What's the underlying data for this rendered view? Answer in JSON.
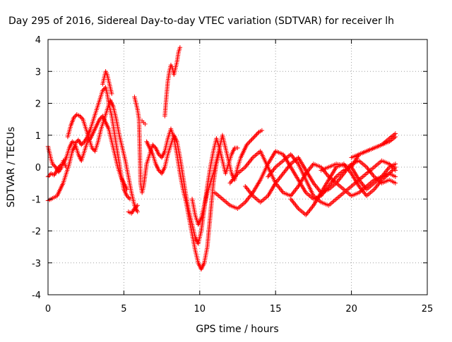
{
  "chart_data": {
    "type": "scatter",
    "title": "Day 295 of 2016, Sidereal Day-to-day VTEC variation (SDTVAR) for receiver lh",
    "xlabel": "GPS time / hours",
    "ylabel": "SDTVAR / TECUs",
    "xlim": [
      0,
      25
    ],
    "ylim": [
      -4,
      4
    ],
    "x_ticks": [
      0,
      5,
      10,
      15,
      20,
      25
    ],
    "x_tick_labels": [
      "0",
      "5",
      "10",
      "15",
      "20",
      "25"
    ],
    "y_ticks": [
      -4,
      -3,
      -2,
      -1,
      0,
      1,
      2,
      3,
      4
    ],
    "y_tick_labels": [
      "-4",
      "-3",
      "-2",
      "-1",
      "0",
      "1",
      "2",
      "3",
      "4"
    ],
    "grid": true,
    "marker": "plus",
    "color": "#ff0000",
    "series": [
      {
        "x": [
          0,
          0.1,
          0.2,
          0.3,
          0.5,
          0.7,
          0.9,
          1.0,
          1.1,
          1.2
        ],
        "y": [
          0.65,
          0.45,
          0.25,
          0.1,
          0.0,
          -0.15,
          0.0,
          0.2,
          0.1,
          0.0
        ]
      },
      {
        "x": [
          0,
          0.2,
          0.4,
          0.6,
          0.8,
          1.0,
          1.2,
          1.4,
          1.6,
          1.8,
          2.0,
          2.2,
          2.4,
          2.6,
          2.8,
          3.0,
          3.2,
          3.4,
          3.6,
          3.8,
          3.9,
          4.0,
          4.2,
          4.4,
          4.6,
          4.8,
          5.0,
          5.2,
          5.4
        ],
        "y": [
          -0.3,
          -0.2,
          -0.25,
          -0.1,
          0.05,
          0.1,
          0.3,
          0.6,
          0.8,
          0.75,
          0.85,
          0.7,
          0.8,
          0.95,
          1.2,
          1.5,
          1.8,
          2.1,
          2.4,
          2.5,
          2.3,
          2.0,
          1.6,
          1.0,
          0.4,
          -0.2,
          -0.7,
          -0.9,
          -1.0
        ]
      },
      {
        "x": [
          0,
          0.2,
          0.4,
          0.6,
          0.8,
          1.0,
          1.2,
          1.4,
          1.6,
          1.8,
          2.0,
          2.2,
          2.4,
          2.6,
          2.8,
          3.0,
          3.2,
          3.4,
          3.6,
          3.8,
          4.0,
          4.2,
          4.4,
          4.6,
          4.8,
          5.0,
          5.2
        ],
        "y": [
          -1.05,
          -1.0,
          -0.95,
          -0.9,
          -0.7,
          -0.5,
          -0.2,
          0.1,
          0.5,
          0.7,
          0.4,
          0.2,
          0.5,
          0.8,
          0.9,
          1.1,
          1.3,
          1.5,
          1.6,
          1.4,
          1.2,
          0.8,
          0.4,
          0.0,
          -0.3,
          -0.5,
          -0.7
        ]
      },
      {
        "x": [
          1.3,
          1.5,
          1.7,
          1.9,
          2.1,
          2.3,
          2.5,
          2.7,
          2.9,
          3.1,
          3.3,
          3.5,
          3.7,
          3.9,
          4.1,
          4.3,
          4.5,
          4.7,
          4.9,
          5.1,
          5.3,
          5.5,
          5.7,
          5.9
        ],
        "y": [
          0.95,
          1.3,
          1.55,
          1.65,
          1.6,
          1.5,
          1.2,
          0.9,
          0.6,
          0.5,
          0.8,
          1.2,
          1.5,
          1.8,
          2.1,
          1.9,
          1.5,
          1.0,
          0.6,
          0.2,
          -0.3,
          -0.8,
          -1.2,
          -1.4
        ]
      },
      {
        "x": [
          3.6,
          3.7,
          3.8,
          3.9,
          4.0,
          4.1,
          4.2
        ],
        "y": [
          2.6,
          2.8,
          3.0,
          2.9,
          2.7,
          2.5,
          2.3
        ]
      },
      {
        "x": [
          5.7,
          5.8,
          5.9,
          6.0,
          6.1,
          6.2,
          6.3,
          6.5,
          6.7,
          6.9,
          7.1,
          7.3,
          7.5,
          7.7,
          7.9,
          8.1,
          8.3,
          8.5,
          8.7,
          8.9,
          9.1,
          9.3,
          9.5,
          9.7,
          9.9,
          10.1,
          10.3,
          10.5,
          10.7,
          10.9,
          11.1,
          11.3
        ],
        "y": [
          2.2,
          2.0,
          1.8,
          1.5,
          -0.5,
          -0.8,
          -0.6,
          0.1,
          0.4,
          0.7,
          0.6,
          0.4,
          0.3,
          0.5,
          0.9,
          1.2,
          0.9,
          0.4,
          -0.2,
          -0.7,
          -1.1,
          -1.6,
          -2.1,
          -2.6,
          -3.0,
          -3.2,
          -3.0,
          -2.5,
          -1.5,
          -0.5,
          0.1,
          0.5
        ]
      },
      {
        "x": [
          6.5,
          6.7,
          6.9,
          7.1,
          7.3,
          7.5,
          7.7,
          7.9,
          8.1,
          8.3,
          8.5,
          8.7,
          8.9,
          9.1,
          9.3,
          9.5,
          9.7,
          9.9,
          10.1,
          10.3,
          10.5,
          10.7,
          10.9,
          11.1,
          11.3,
          11.5,
          11.7,
          11.9,
          12.1,
          12.3,
          12.5
        ],
        "y": [
          0.8,
          0.6,
          0.4,
          0.1,
          -0.1,
          -0.2,
          0.0,
          0.4,
          0.7,
          1.0,
          0.8,
          0.3,
          -0.3,
          -0.9,
          -1.4,
          -1.8,
          -2.2,
          -2.4,
          -2.0,
          -1.3,
          -0.6,
          0.0,
          0.5,
          0.9,
          0.6,
          0.2,
          -0.2,
          0.1,
          0.4,
          0.6,
          0.6
        ]
      },
      {
        "x": [
          7.7,
          7.8,
          7.9,
          8.0,
          8.1,
          8.2,
          8.3,
          8.4,
          8.5,
          8.6,
          8.7
        ],
        "y": [
          1.6,
          2.2,
          2.7,
          3.0,
          3.2,
          3.1,
          2.9,
          3.1,
          3.3,
          3.6,
          3.75
        ]
      },
      {
        "x": [
          5.3,
          5.5,
          5.7,
          5.9
        ],
        "y": [
          -1.4,
          -1.45,
          -1.3,
          -1.2
        ]
      },
      {
        "x": [
          6.2,
          6.3,
          6.4
        ],
        "y": [
          1.45,
          1.4,
          1.35
        ]
      },
      {
        "x": [
          9.5,
          9.7,
          9.9,
          10.1,
          10.3,
          10.5,
          10.7,
          10.9,
          11.1,
          11.3,
          11.5,
          11.7,
          11.9,
          12.1,
          12.3,
          12.5,
          12.7,
          12.9,
          13.1,
          13.3,
          13.5,
          13.7,
          13.9,
          14.1
        ],
        "y": [
          -1.0,
          -1.5,
          -1.8,
          -1.6,
          -1.2,
          -0.8,
          -0.5,
          -0.2,
          0.2,
          0.6,
          1.0,
          0.6,
          0.2,
          -0.2,
          -0.4,
          0.0,
          0.3,
          0.5,
          0.7,
          0.8,
          0.9,
          1.0,
          1.1,
          1.15
        ]
      },
      {
        "x": [
          11.0,
          11.5,
          12.0,
          12.5,
          13.0,
          13.5,
          14.0,
          14.5,
          15.0,
          15.5,
          16.0,
          16.5,
          17.0,
          17.5,
          18.0,
          18.5,
          19.0,
          19.5,
          20.0,
          20.5,
          21.0,
          21.5,
          22.0,
          22.5,
          22.9
        ],
        "y": [
          -0.8,
          -1.0,
          -1.2,
          -1.3,
          -1.1,
          -0.8,
          -0.4,
          0.1,
          0.5,
          0.4,
          0.0,
          -0.4,
          -0.8,
          -1.0,
          -0.9,
          -0.6,
          -0.3,
          -0.1,
          0.0,
          -0.4,
          -0.7,
          -0.5,
          -0.3,
          0.0,
          0.1
        ]
      },
      {
        "x": [
          12.0,
          12.5,
          13.0,
          13.5,
          14.0,
          14.5,
          15.0,
          15.5,
          16.0,
          16.5,
          17.0,
          17.5,
          18.0,
          18.5,
          19.0,
          19.5,
          20.0,
          20.5,
          21.0,
          21.5,
          22.0,
          22.5,
          22.9
        ],
        "y": [
          -0.5,
          -0.2,
          0.0,
          0.3,
          0.5,
          0.0,
          -0.5,
          -0.8,
          -0.9,
          -0.6,
          -0.2,
          0.1,
          0.0,
          -0.3,
          -0.5,
          -0.7,
          -0.9,
          -0.8,
          -0.6,
          -0.4,
          -0.3,
          -0.2,
          -0.3
        ]
      },
      {
        "x": [
          13.0,
          13.5,
          14.0,
          14.5,
          15.0,
          15.5,
          16.0,
          16.5,
          17.0,
          17.5,
          18.0,
          18.5,
          19.0,
          19.5,
          20.0,
          20.5,
          21.0,
          21.5,
          22.0,
          22.5,
          22.9
        ],
        "y": [
          -0.6,
          -0.9,
          -1.1,
          -0.9,
          -0.5,
          -0.2,
          0.1,
          0.3,
          -0.1,
          -0.5,
          -0.8,
          -0.7,
          -0.5,
          -0.2,
          0.1,
          0.2,
          0.0,
          -0.3,
          -0.5,
          -0.4,
          -0.5
        ]
      },
      {
        "x": [
          14.5,
          15.0,
          15.5,
          16.0,
          16.5,
          17.0,
          17.5,
          18.0,
          18.5,
          19.0,
          19.5,
          20.0,
          20.5,
          21.0,
          21.5,
          22.0,
          22.5,
          22.9
        ],
        "y": [
          -0.3,
          0.0,
          0.2,
          0.4,
          0.1,
          -0.4,
          -0.9,
          -1.1,
          -1.2,
          -1.0,
          -0.8,
          -0.6,
          -0.4,
          -0.2,
          0.0,
          0.2,
          0.1,
          -0.1
        ]
      },
      {
        "x": [
          16.0,
          16.5,
          17.0,
          17.5,
          18.0,
          18.5,
          19.0,
          19.5,
          20.0,
          20.5,
          21.0,
          21.5,
          22.0,
          22.5,
          22.9
        ],
        "y": [
          -1.0,
          -1.3,
          -1.5,
          -1.2,
          -0.8,
          -0.4,
          0.0,
          0.1,
          -0.2,
          -0.6,
          -0.9,
          -0.7,
          -0.4,
          -0.2,
          0.0
        ]
      },
      {
        "x": [
          18.0,
          18.5,
          19.0,
          19.5,
          20.0,
          20.5,
          21.0,
          21.5,
          22.0,
          22.5,
          22.9
        ],
        "y": [
          -0.1,
          0.0,
          0.1,
          0.05,
          0.0,
          0.4,
          0.5,
          0.6,
          0.7,
          0.9,
          1.05
        ]
      },
      {
        "x": [
          20.0,
          20.5,
          21.0,
          21.5,
          22.0,
          22.5,
          22.9
        ],
        "y": [
          0.3,
          0.4,
          0.5,
          0.6,
          0.7,
          0.8,
          0.95
        ]
      }
    ]
  }
}
